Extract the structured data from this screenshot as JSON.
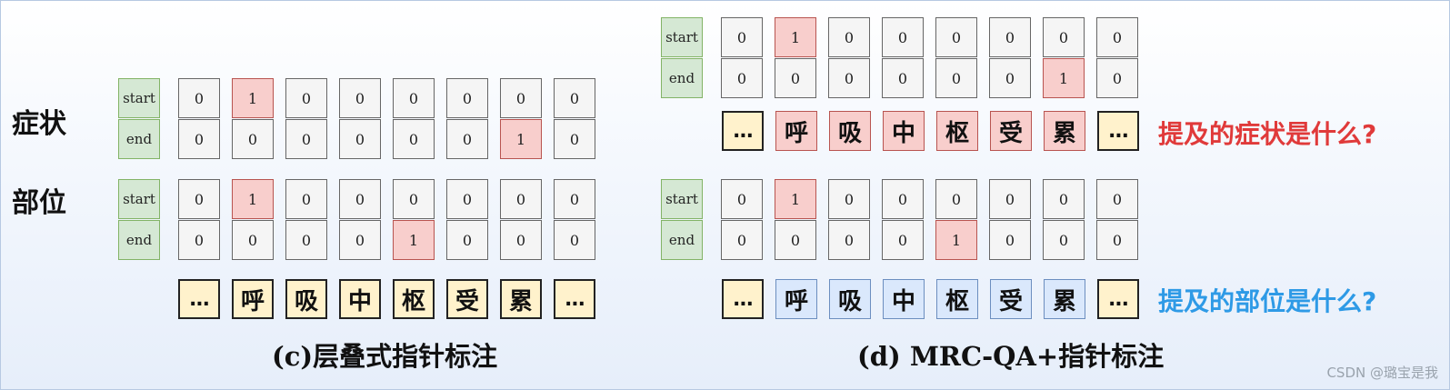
{
  "tag_labels": [
    "start",
    "end"
  ],
  "tokens": [
    "...",
    "呼",
    "吸",
    "中",
    "枢",
    "受",
    "累",
    "..."
  ],
  "panel_c": {
    "caption": "(c)层叠式指针标注",
    "rows": [
      {
        "label": "症状",
        "start": [
          "0",
          "1",
          "0",
          "0",
          "0",
          "0",
          "0",
          "0"
        ],
        "end": [
          "0",
          "0",
          "0",
          "0",
          "0",
          "0",
          "1",
          "0"
        ]
      },
      {
        "label": "部位",
        "start": [
          "0",
          "1",
          "0",
          "0",
          "0",
          "0",
          "0",
          "0"
        ],
        "end": [
          "0",
          "0",
          "0",
          "0",
          "1",
          "0",
          "0",
          "0"
        ]
      }
    ]
  },
  "panel_d": {
    "caption": "(d) MRC-QA+指针标注",
    "blocks": [
      {
        "question": "提及的症状是什么?",
        "start": [
          "0",
          "1",
          "0",
          "0",
          "0",
          "0",
          "0",
          "0"
        ],
        "end": [
          "0",
          "0",
          "0",
          "0",
          "0",
          "0",
          "1",
          "0"
        ]
      },
      {
        "question": "提及的部位是什么?",
        "start": [
          "0",
          "1",
          "0",
          "0",
          "0",
          "0",
          "0",
          "0"
        ],
        "end": [
          "0",
          "0",
          "0",
          "0",
          "1",
          "0",
          "0",
          "0"
        ]
      }
    ]
  },
  "colors": {
    "symptom_question": "#e03a3a",
    "location_question": "#2e9ae6",
    "hit_fill": "#f8cecc",
    "token_fill": "#fff2cc",
    "tag_fill": "#d5e8d4"
  },
  "watermark": "CSDN @璐宝是我"
}
